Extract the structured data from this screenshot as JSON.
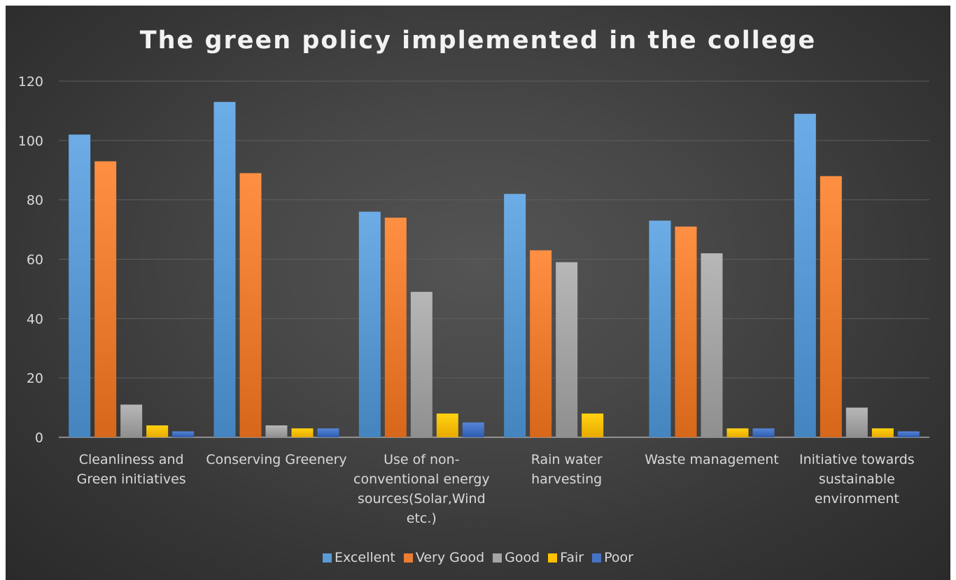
{
  "chart_data": {
    "type": "bar",
    "title": "The green policy implemented in the college",
    "xlabel": "",
    "ylabel": "",
    "ylim": [
      0,
      120
    ],
    "yticks": [
      0,
      20,
      40,
      60,
      80,
      100,
      120
    ],
    "grid": true,
    "legend_position": "bottom",
    "categories": [
      [
        "Cleanliness and",
        "Green initiatives"
      ],
      [
        "Conserving Greenery"
      ],
      [
        "Use of non-",
        "conventional energy",
        "sources(Solar,Wind",
        "etc.)"
      ],
      [
        "Rain water",
        "harvesting"
      ],
      [
        "Waste management"
      ],
      [
        "Initiative towards",
        "sustainable",
        "environment"
      ]
    ],
    "series": [
      {
        "name": "Excellent",
        "color": "#5b9bd5",
        "values": [
          102,
          113,
          76,
          82,
          73,
          109
        ]
      },
      {
        "name": "Very Good",
        "color": "#ed7d31",
        "values": [
          93,
          89,
          74,
          63,
          71,
          88
        ]
      },
      {
        "name": "Good",
        "color": "#a5a5a5",
        "values": [
          11,
          4,
          49,
          59,
          62,
          10
        ]
      },
      {
        "name": "Fair",
        "color": "#ffc000",
        "values": [
          4,
          3,
          8,
          8,
          3,
          3
        ]
      },
      {
        "name": "Poor",
        "color": "#4472c4",
        "values": [
          2,
          3,
          5,
          0,
          3,
          2
        ]
      }
    ]
  }
}
